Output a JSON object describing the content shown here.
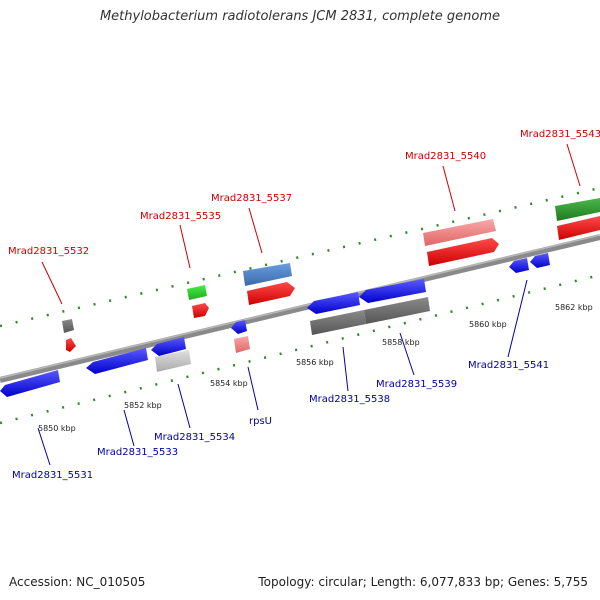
{
  "title": "Methylobacterium radiotolerans JCM 2831, complete genome",
  "footer": {
    "accession": "Accession: NC_010505",
    "summary": "Topology: circular; Length: 6,077,833 bp; Genes: 5,755"
  },
  "axis_labels": [
    "5850 kbp",
    "5852 kbp",
    "5854 kbp",
    "5856 kbp",
    "5858 kbp",
    "5860 kbp",
    "5862 kbp"
  ],
  "forward_labels": [
    "Mrad2831_5532",
    "Mrad2831_5535",
    "Mrad2831_5537",
    "Mrad2831_5540",
    "Mrad2831_5543"
  ],
  "reverse_labels": [
    "Mrad2831_5531",
    "Mrad2831_5533",
    "Mrad2831_5534",
    "rpsU",
    "Mrad2831_5538",
    "Mrad2831_5539",
    "Mrad2831_5541"
  ],
  "colors": {
    "backbone": "#888888",
    "forward_cds": "#ee0000",
    "forward_highlight": "#f08080",
    "reverse_cds": "#1a1aee",
    "pseudo_gray": "#6e6e6e",
    "light_gray": "#c8c8c8",
    "steel_blue": "#4a82c8",
    "green": "#2e8b2e",
    "tick_green": "#2a8a2a",
    "red_label": "#cc0000",
    "blue_label": "#0000aa"
  }
}
